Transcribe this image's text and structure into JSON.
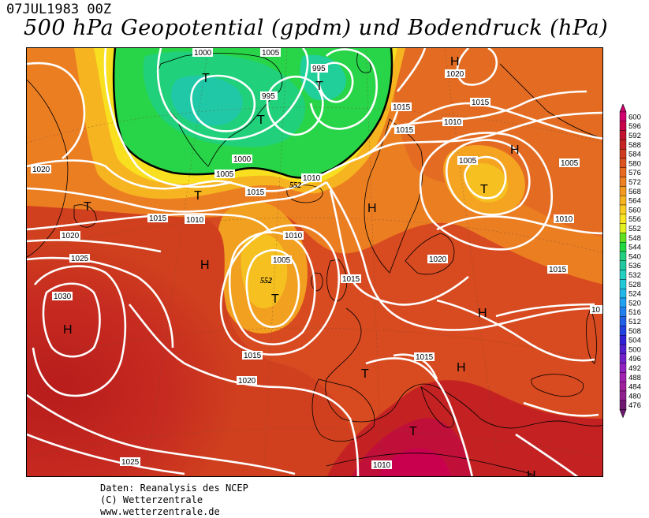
{
  "header": {
    "date": "07JUL1983 00Z",
    "title": "500 hPa Geopotential (gpdm) und Bodendruck (hPa)"
  },
  "legend": {
    "levels": [
      "600",
      "596",
      "592",
      "588",
      "584",
      "580",
      "576",
      "572",
      "568",
      "564",
      "560",
      "556",
      "552",
      "548",
      "544",
      "540",
      "536",
      "532",
      "528",
      "524",
      "520",
      "516",
      "512",
      "508",
      "504",
      "500",
      "496",
      "492",
      "488",
      "484",
      "480",
      "476"
    ],
    "colors": [
      "#d0006e",
      "#c8004a",
      "#c0102e",
      "#c62424",
      "#d03a20",
      "#dc5220",
      "#e86a20",
      "#ee8020",
      "#f29a20",
      "#f6b420",
      "#f8cc20",
      "#f8e420",
      "#e0f020",
      "#60e020",
      "#20d840",
      "#20d080",
      "#20c8a0",
      "#20d0c0",
      "#20c8d8",
      "#20b8e8",
      "#20a0f0",
      "#2080f0",
      "#2060e8",
      "#2040e0",
      "#3020d8",
      "#5020d0",
      "#7020c8",
      "#9020c0",
      "#a020b0",
      "#a0209c",
      "#902090",
      "#701870"
    ]
  },
  "map_labels": {
    "pressure_highs": [
      "H",
      "H",
      "H",
      "H",
      "H",
      "H",
      "H",
      "H"
    ],
    "pressure_lows": [
      "T",
      "T",
      "T",
      "T",
      "T",
      "T",
      "T",
      "T",
      "T"
    ],
    "isobar_labels": [
      "1000",
      "1005",
      "995",
      "995",
      "1000",
      "1005",
      "1010",
      "1015",
      "1010",
      "1015",
      "1020",
      "1020",
      "1025",
      "1030",
      "1005",
      "1010",
      "1015",
      "1015",
      "1020",
      "1015",
      "1010",
      "1020",
      "1015",
      "1010",
      "1005",
      "1015",
      "1010",
      "1005",
      "1020",
      "1015",
      "1025",
      "1010",
      "1015",
      "10"
    ],
    "geopotential_labels": [
      "552",
      "552"
    ]
  },
  "footer": {
    "line1": "Daten: Reanalysis des NCEP",
    "line2": "(C) Wetterzentrale",
    "line3": "www.wetterzentrale.de"
  }
}
